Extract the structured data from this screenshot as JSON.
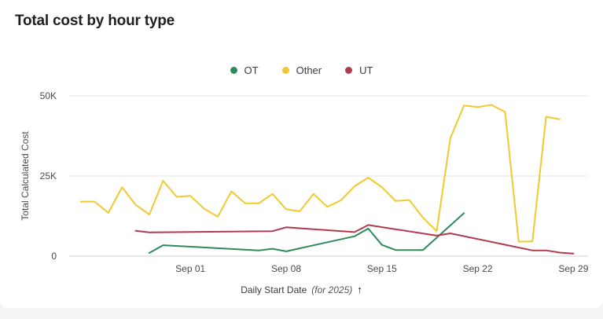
{
  "title": "Total cost by hour type",
  "chart_data": {
    "type": "line",
    "title": "Total cost by hour type",
    "ylabel": "Total Calculated Cost",
    "xlabel": "Daily Start Date",
    "xlabel_note": "(for 2025)",
    "x_start": "2025-08-24",
    "x_end": "2025-09-30",
    "ylim": [
      0,
      50000
    ],
    "yticks": [
      {
        "value": 0,
        "label": "0"
      },
      {
        "value": 25000,
        "label": "25K"
      },
      {
        "value": 50000,
        "label": "50K"
      }
    ],
    "xticks": [
      {
        "date": "2025-09-01",
        "label": "Sep 01"
      },
      {
        "date": "2025-09-08",
        "label": "Sep 08"
      },
      {
        "date": "2025-09-15",
        "label": "Sep 15"
      },
      {
        "date": "2025-09-22",
        "label": "Sep 22"
      },
      {
        "date": "2025-09-29",
        "label": "Sep 29"
      }
    ],
    "grid": true,
    "legend_position": "top-center",
    "series": [
      {
        "name": "OT",
        "color": "#2e8b57",
        "points": [
          [
            "2025-08-29",
            1000
          ],
          [
            "2025-08-30",
            3400
          ],
          [
            "2025-09-06",
            1800
          ],
          [
            "2025-09-07",
            2300
          ],
          [
            "2025-09-08",
            1500
          ],
          [
            "2025-09-13",
            6200
          ],
          [
            "2025-09-14",
            8600
          ],
          [
            "2025-09-15",
            3500
          ],
          [
            "2025-09-16",
            1900
          ],
          [
            "2025-09-18",
            1900
          ],
          [
            "2025-09-21",
            13400
          ]
        ]
      },
      {
        "name": "Other",
        "color": "#f2c830",
        "points": [
          [
            "2025-08-24",
            17000
          ],
          [
            "2025-08-25",
            17000
          ],
          [
            "2025-08-26",
            13500
          ],
          [
            "2025-08-27",
            21500
          ],
          [
            "2025-08-28",
            16000
          ],
          [
            "2025-08-29",
            13000
          ],
          [
            "2025-08-30",
            23500
          ],
          [
            "2025-08-31",
            18500
          ],
          [
            "2025-09-01",
            18800
          ],
          [
            "2025-09-02",
            14800
          ],
          [
            "2025-09-03",
            12300
          ],
          [
            "2025-09-04",
            20200
          ],
          [
            "2025-09-05",
            16500
          ],
          [
            "2025-09-06",
            16500
          ],
          [
            "2025-09-07",
            19400
          ],
          [
            "2025-09-08",
            14600
          ],
          [
            "2025-09-09",
            14000
          ],
          [
            "2025-09-10",
            19400
          ],
          [
            "2025-09-11",
            15400
          ],
          [
            "2025-09-12",
            17400
          ],
          [
            "2025-09-13",
            21800
          ],
          [
            "2025-09-14",
            24500
          ],
          [
            "2025-09-15",
            21500
          ],
          [
            "2025-09-16",
            17200
          ],
          [
            "2025-09-17",
            17500
          ],
          [
            "2025-09-18",
            12000
          ],
          [
            "2025-09-19",
            7800
          ],
          [
            "2025-09-20",
            36800
          ],
          [
            "2025-09-21",
            47000
          ],
          [
            "2025-09-22",
            46500
          ],
          [
            "2025-09-23",
            47200
          ],
          [
            "2025-09-24",
            45000
          ],
          [
            "2025-09-25",
            4500
          ],
          [
            "2025-09-26",
            4600
          ],
          [
            "2025-09-27",
            43500
          ],
          [
            "2025-09-28",
            42700
          ]
        ]
      },
      {
        "name": "UT",
        "color": "#b03a4e",
        "points": [
          [
            "2025-08-28",
            7900
          ],
          [
            "2025-08-29",
            7400
          ],
          [
            "2025-09-07",
            7800
          ],
          [
            "2025-09-08",
            9000
          ],
          [
            "2025-09-13",
            7500
          ],
          [
            "2025-09-14",
            9700
          ],
          [
            "2025-09-19",
            6400
          ],
          [
            "2025-09-20",
            7100
          ],
          [
            "2025-09-26",
            1800
          ],
          [
            "2025-09-27",
            1800
          ],
          [
            "2025-09-28",
            1100
          ],
          [
            "2025-09-29",
            800
          ]
        ]
      }
    ]
  }
}
